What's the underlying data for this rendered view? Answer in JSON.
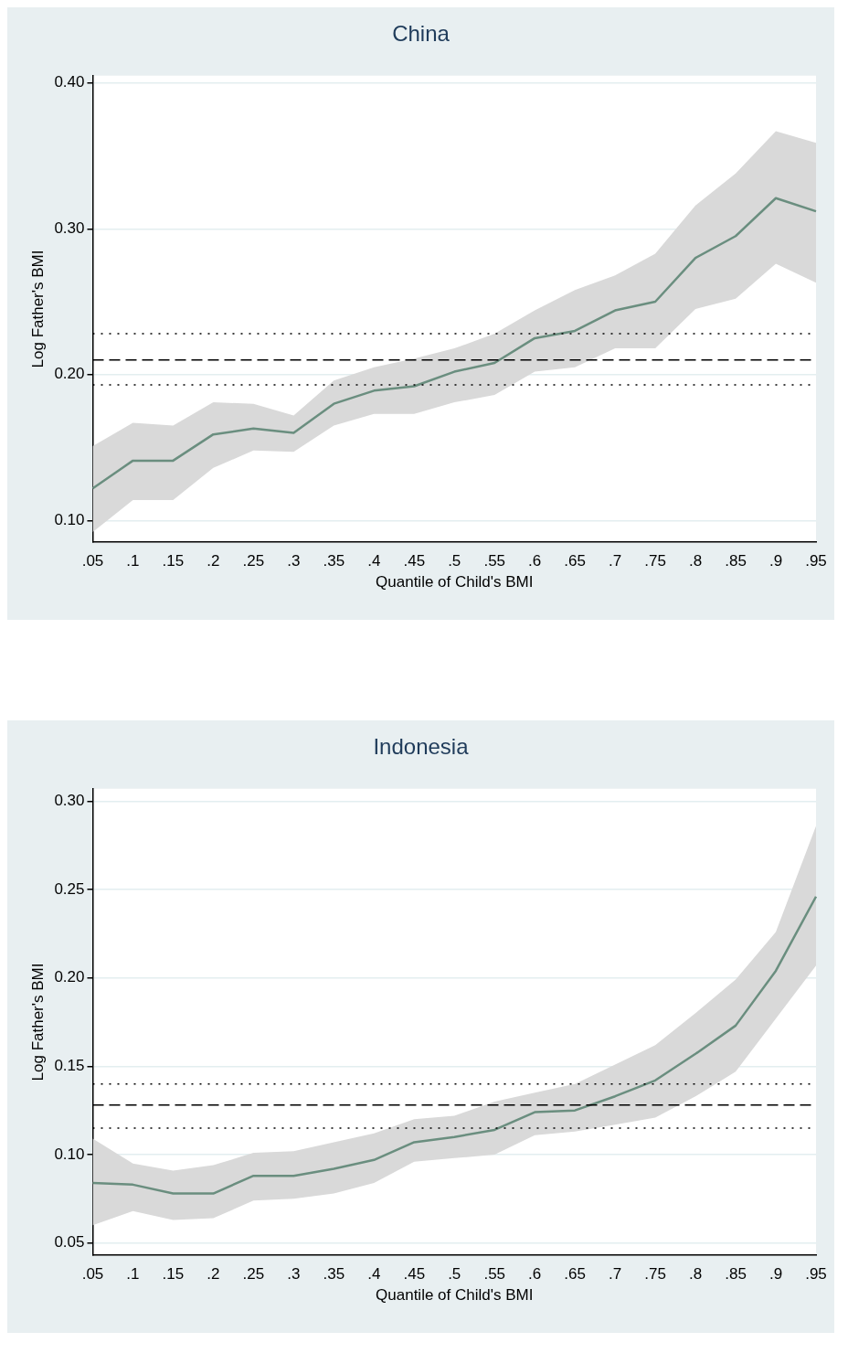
{
  "chart_data": [
    {
      "type": "line",
      "title": "China",
      "xlabel": "Quantile of Child's BMI",
      "ylabel": "Log Father's BMI",
      "categories": [
        ".05",
        ".1",
        ".15",
        ".2",
        ".25",
        ".3",
        ".35",
        ".4",
        ".45",
        ".5",
        ".55",
        ".6",
        ".65",
        ".7",
        ".75",
        ".8",
        ".85",
        ".9",
        ".95"
      ],
      "series": [
        {
          "color": "#6a8e7f",
          "values": [
            0.122,
            0.141,
            0.141,
            0.159,
            0.163,
            0.16,
            0.18,
            0.189,
            0.192,
            0.202,
            0.208,
            0.225,
            0.23,
            0.244,
            0.25,
            0.28,
            0.295,
            0.321,
            0.312
          ],
          "lower": [
            0.092,
            0.114,
            0.114,
            0.136,
            0.148,
            0.147,
            0.165,
            0.173,
            0.173,
            0.181,
            0.186,
            0.202,
            0.205,
            0.218,
            0.218,
            0.245,
            0.252,
            0.276,
            0.263
          ],
          "upper": [
            0.151,
            0.167,
            0.165,
            0.181,
            0.18,
            0.172,
            0.196,
            0.205,
            0.211,
            0.218,
            0.228,
            0.244,
            0.258,
            0.268,
            0.283,
            0.316,
            0.338,
            0.367,
            0.359
          ]
        }
      ],
      "ylim": [
        0.085,
        0.405
      ],
      "yticks": [
        {
          "value": 0.1,
          "label": "0.10"
        },
        {
          "value": 0.2,
          "label": "0.20"
        },
        {
          "value": 0.3,
          "label": "0.30"
        },
        {
          "value": 0.4,
          "label": "0.40"
        }
      ],
      "ref_lines": [
        {
          "axis": "y",
          "value": 0.228,
          "color": "#000000",
          "line_style": "dotted"
        },
        {
          "axis": "y",
          "value": 0.21,
          "color": "#000000",
          "line_style": "dashed"
        },
        {
          "axis": "y",
          "value": 0.193,
          "color": "#000000",
          "line_style": "dotted"
        }
      ],
      "grid": "y",
      "legend": false
    },
    {
      "type": "line",
      "title": "Indonesia",
      "xlabel": "Quantile of Child's BMI",
      "ylabel": "Log Father's BMI",
      "categories": [
        ".05",
        ".1",
        ".15",
        ".2",
        ".25",
        ".3",
        ".35",
        ".4",
        ".45",
        ".5",
        ".55",
        ".6",
        ".65",
        ".7",
        ".75",
        ".8",
        ".85",
        ".9",
        ".95"
      ],
      "series": [
        {
          "color": "#6a8e7f",
          "values": [
            0.084,
            0.083,
            0.078,
            0.078,
            0.088,
            0.088,
            0.092,
            0.097,
            0.107,
            0.11,
            0.114,
            0.124,
            0.125,
            0.133,
            0.142,
            0.157,
            0.173,
            0.204,
            0.246
          ],
          "lower": [
            0.06,
            0.068,
            0.063,
            0.064,
            0.074,
            0.075,
            0.078,
            0.084,
            0.096,
            0.098,
            0.1,
            0.111,
            0.113,
            0.117,
            0.121,
            0.133,
            0.147,
            0.177,
            0.207
          ],
          "upper": [
            0.109,
            0.095,
            0.091,
            0.094,
            0.101,
            0.102,
            0.107,
            0.112,
            0.12,
            0.122,
            0.13,
            0.135,
            0.14,
            0.151,
            0.162,
            0.18,
            0.199,
            0.226,
            0.286
          ]
        }
      ],
      "ylim": [
        0.043,
        0.307
      ],
      "yticks": [
        {
          "value": 0.05,
          "label": "0.05"
        },
        {
          "value": 0.1,
          "label": "0.10"
        },
        {
          "value": 0.15,
          "label": "0.15"
        },
        {
          "value": 0.2,
          "label": "0.20"
        },
        {
          "value": 0.25,
          "label": "0.25"
        },
        {
          "value": 0.3,
          "label": "0.30"
        }
      ],
      "ref_lines": [
        {
          "axis": "y",
          "value": 0.14,
          "color": "#000000",
          "line_style": "dotted"
        },
        {
          "axis": "y",
          "value": 0.128,
          "color": "#000000",
          "line_style": "dashed"
        },
        {
          "axis": "y",
          "value": 0.115,
          "color": "#000000",
          "line_style": "dotted"
        }
      ],
      "grid": "y",
      "legend": false
    }
  ]
}
